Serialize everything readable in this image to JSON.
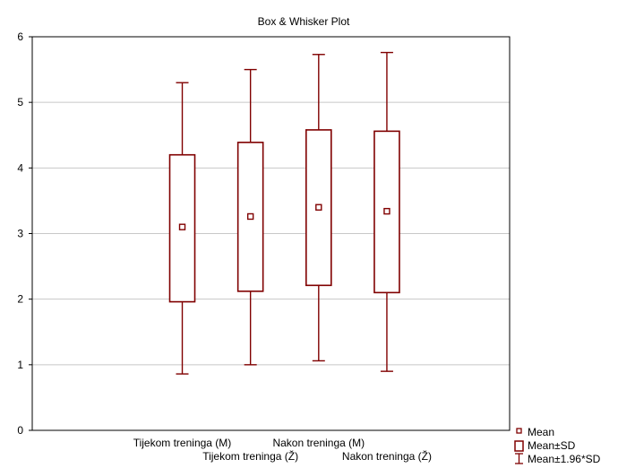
{
  "chart_data": {
    "type": "box",
    "title": "Box & Whisker Plot",
    "xlabel": "",
    "ylabel": "",
    "ylim": [
      0,
      6
    ],
    "yticks": [
      0,
      1,
      2,
      3,
      4,
      5,
      6
    ],
    "grid": true,
    "categories": [
      "Tijekom treninga (M)",
      "Tijekom treninga (Ž)",
      "Nakon treninga (M)",
      "Nakon treninga (Ž)"
    ],
    "boxes": [
      {
        "mean": 3.1,
        "sd_low": 1.96,
        "sd_high": 4.2,
        "whisker_low": 0.86,
        "whisker_high": 5.3
      },
      {
        "mean": 3.26,
        "sd_low": 2.12,
        "sd_high": 4.39,
        "whisker_low": 1.0,
        "whisker_high": 5.5
      },
      {
        "mean": 3.4,
        "sd_low": 2.21,
        "sd_high": 4.58,
        "whisker_low": 1.06,
        "whisker_high": 5.73
      },
      {
        "mean": 3.34,
        "sd_low": 2.1,
        "sd_high": 4.56,
        "whisker_low": 0.9,
        "whisker_high": 5.76
      }
    ],
    "legend": {
      "placement": "bottom-right",
      "items": [
        "Mean",
        "Mean±SD",
        "Mean±1.96*SD"
      ]
    },
    "colors": {
      "series": "#800000",
      "grid": "#c8c8c8",
      "axis": "#000000"
    }
  }
}
